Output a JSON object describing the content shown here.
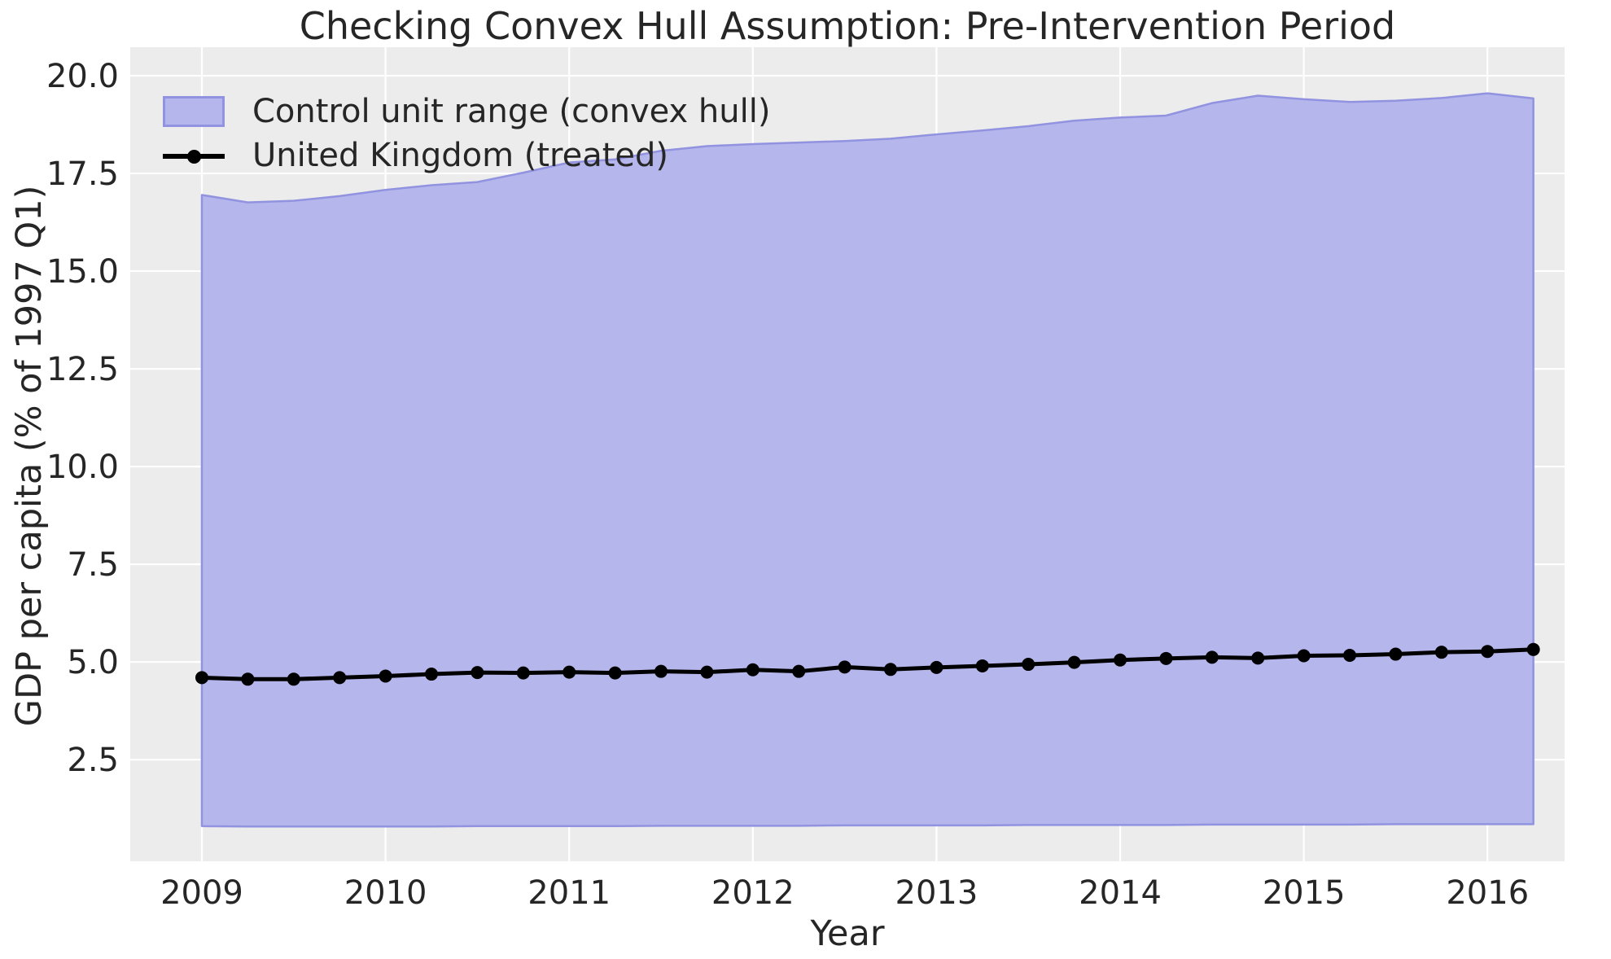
{
  "figure": {
    "title": "Checking Convex Hull Assumption: Pre-Intervention Period"
  },
  "axes": {
    "xlabel": "Year",
    "ylabel": "GDP per capita (% of 1997 Q1)",
    "xtick_labels": [
      "2009",
      "2010",
      "2011",
      "2012",
      "2013",
      "2014",
      "2015",
      "2016"
    ],
    "ytick_labels": [
      "2.5",
      "5.0",
      "7.5",
      "10.0",
      "12.5",
      "15.0",
      "17.5",
      "20.0"
    ]
  },
  "legend": {
    "position": "upper-left",
    "frame": false,
    "items": [
      {
        "label": "Control unit range (convex hull)",
        "swatch": "filled-band"
      },
      {
        "label": "United Kingdom (treated)",
        "swatch": "line-with-marker"
      }
    ]
  },
  "colors": {
    "plot_bg": "#ececec",
    "grid": "#ffffff",
    "hull_fill": "#b5b6ec",
    "hull_edge": "#9193e0",
    "uk_line": "#000000",
    "text": "#262626"
  },
  "chart_data": {
    "type": "area",
    "title": "Checking Convex Hull Assumption: Pre-Intervention Period",
    "xlabel": "Year",
    "ylabel": "GDP per capita (% of 1997 Q1)",
    "xlim": [
      2008.61,
      2016.42
    ],
    "ylim": [
      -0.1,
      20.73
    ],
    "xticks": [
      2009,
      2010,
      2011,
      2012,
      2013,
      2014,
      2015,
      2016
    ],
    "yticks": [
      2.5,
      5.0,
      7.5,
      10.0,
      12.5,
      15.0,
      17.5,
      20.0
    ],
    "grid": true,
    "legend_position": "upper-left",
    "x": [
      2009.0,
      2009.25,
      2009.5,
      2009.75,
      2010.0,
      2010.25,
      2010.5,
      2010.75,
      2011.0,
      2011.25,
      2011.5,
      2011.75,
      2012.0,
      2012.25,
      2012.5,
      2012.75,
      2013.0,
      2013.25,
      2013.5,
      2013.75,
      2014.0,
      2014.25,
      2014.5,
      2014.75,
      2015.0,
      2015.25,
      2015.5,
      2015.75,
      2016.0,
      2016.25
    ],
    "series": [
      {
        "name": "Control unit range (convex hull)",
        "type": "band",
        "upper": [
          16.95,
          16.76,
          16.8,
          16.92,
          17.08,
          17.2,
          17.28,
          17.52,
          17.78,
          17.86,
          18.08,
          18.2,
          18.25,
          18.29,
          18.33,
          18.39,
          18.5,
          18.6,
          18.71,
          18.85,
          18.93,
          18.98,
          19.3,
          19.49,
          19.4,
          19.33,
          19.36,
          19.43,
          19.55,
          19.42
        ],
        "lower": [
          0.8,
          0.79,
          0.79,
          0.79,
          0.79,
          0.79,
          0.8,
          0.8,
          0.8,
          0.8,
          0.81,
          0.81,
          0.81,
          0.81,
          0.82,
          0.82,
          0.82,
          0.82,
          0.83,
          0.83,
          0.83,
          0.83,
          0.84,
          0.84,
          0.84,
          0.84,
          0.85,
          0.85,
          0.85,
          0.85
        ]
      },
      {
        "name": "United Kingdom (treated)",
        "type": "line",
        "marker": "circle",
        "values": [
          4.6,
          4.56,
          4.56,
          4.6,
          4.64,
          4.69,
          4.73,
          4.72,
          4.74,
          4.72,
          4.76,
          4.74,
          4.8,
          4.76,
          4.87,
          4.81,
          4.86,
          4.9,
          4.94,
          4.99,
          5.05,
          5.09,
          5.12,
          5.1,
          5.16,
          5.17,
          5.2,
          5.25,
          5.27,
          5.32
        ]
      }
    ]
  }
}
